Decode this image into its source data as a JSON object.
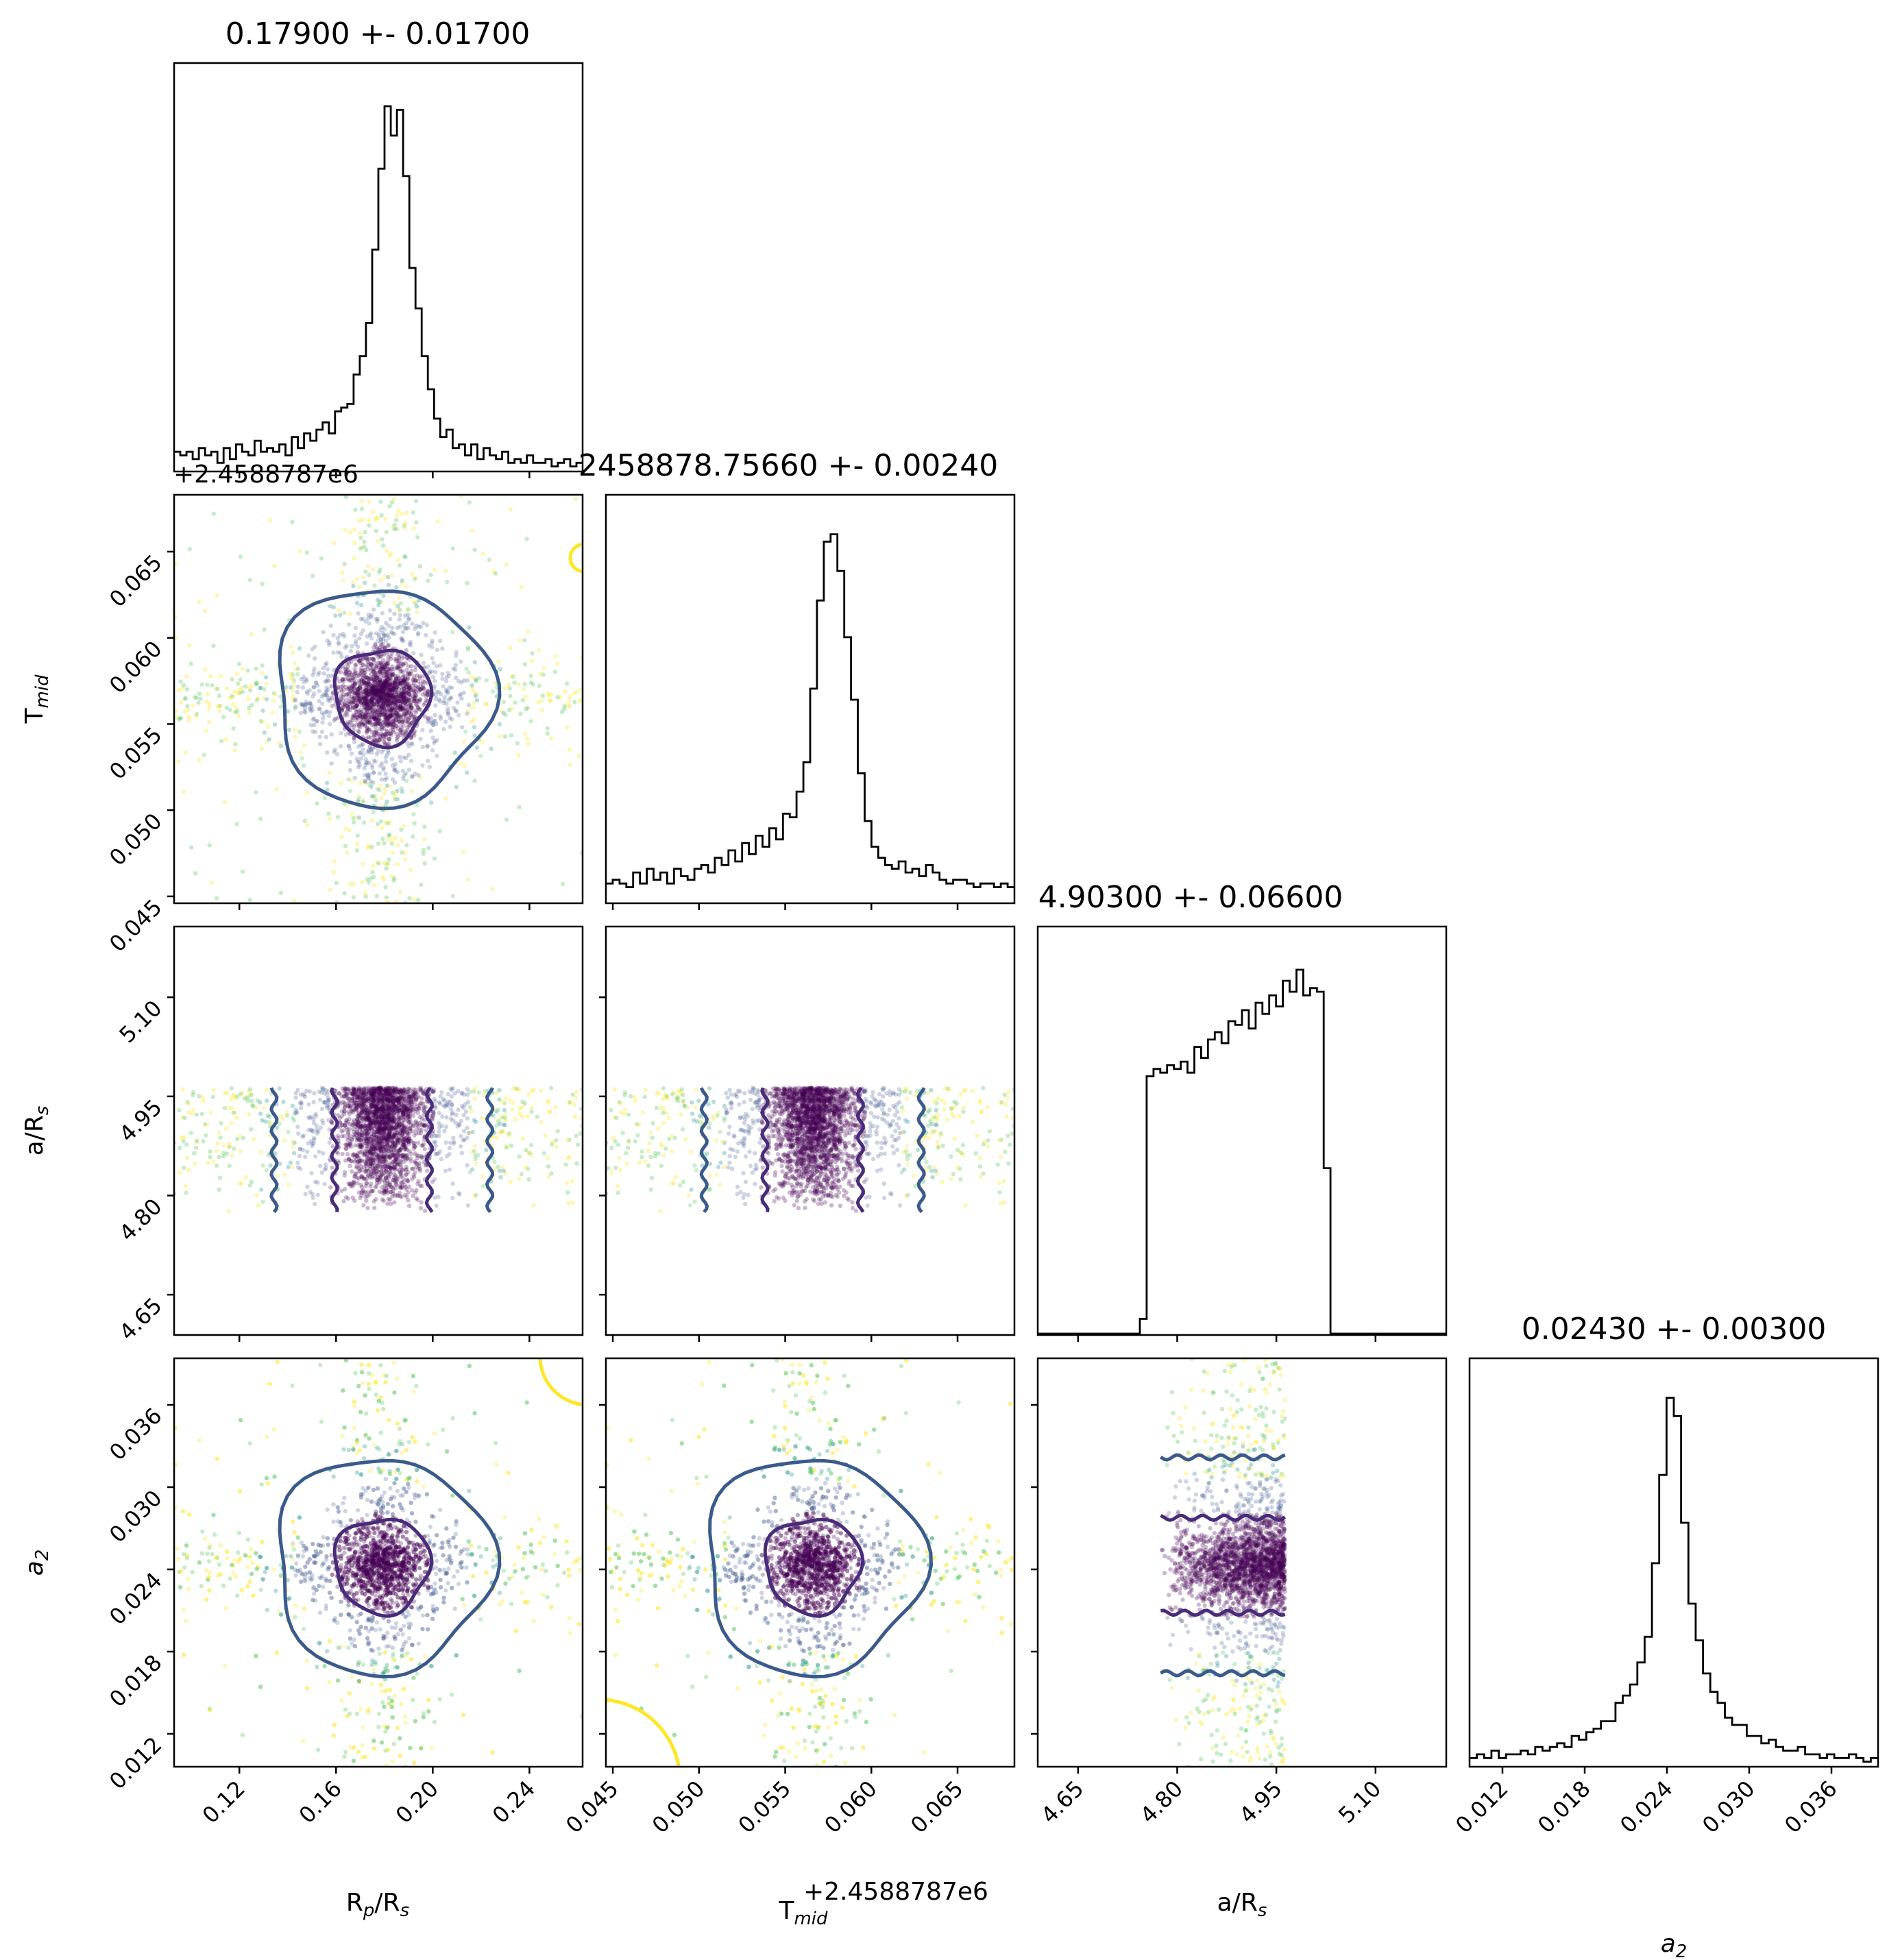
{
  "colors": {
    "axis": "#000000",
    "hist_line": "#000000",
    "contour_inner": "#472c7a",
    "contour_outer": "#3b5a8c",
    "contour_far": "#fde725",
    "points_core": "#440154",
    "points_mid": "#3b528b",
    "points_teal": "#21918c",
    "points_green": "#5ec962",
    "points_yellow": "#fde725"
  },
  "parameters": [
    {
      "key": "rp",
      "label_main": "R",
      "label_sub": "p",
      "label_tail": "/R",
      "label_tail_sub": "s"
    },
    {
      "key": "tmid",
      "label_main": "T",
      "label_sub": "mid",
      "label_tail": "",
      "label_tail_sub": ""
    },
    {
      "key": "ars",
      "label_main": "a/R",
      "label_sub": "s",
      "label_tail": "",
      "label_tail_sub": ""
    },
    {
      "key": "a2",
      "label_main": "a",
      "label_sub": "2",
      "label_tail": "",
      "label_tail_sub": ""
    }
  ],
  "titles": [
    "0.17900 +- 0.01700",
    "2458878.75660 +- 0.00240",
    "4.90300 +- 0.06600",
    "0.02430 +- 0.00300"
  ],
  "offset_label": "+2.4588787e6",
  "chart_data": {
    "type": "scatter",
    "subtype": "corner-plot",
    "axes": {
      "rp": {
        "range": [
          0.093,
          0.262
        ],
        "ticks": [
          0.12,
          0.16,
          0.2,
          0.24
        ],
        "tick_labels": [
          "0.12",
          "0.16",
          "0.20",
          "0.24"
        ]
      },
      "tmid": {
        "range": [
          0.0446,
          0.0683
        ],
        "ticks": [
          0.045,
          0.05,
          0.055,
          0.06,
          0.065
        ],
        "tick_labels": [
          "0.045",
          "0.050",
          "0.055",
          "0.060",
          "0.065"
        ],
        "offset": "+2.4588787e6"
      },
      "ars": {
        "range": [
          4.589,
          5.207
        ],
        "ticks": [
          4.65,
          4.8,
          4.95,
          5.1
        ],
        "tick_labels": [
          "4.65",
          "4.80",
          "4.95",
          "5.10"
        ]
      },
      "a2": {
        "range": [
          0.0096,
          0.0394
        ],
        "ticks": [
          0.012,
          0.018,
          0.024,
          0.03,
          0.036
        ],
        "tick_labels": [
          "0.012",
          "0.018",
          "0.024",
          "0.030",
          "0.036"
        ]
      }
    },
    "posterior_summary": [
      {
        "parameter": "rp",
        "median": 0.179,
        "sigma": 0.017
      },
      {
        "parameter": "tmid",
        "median": 0.0566,
        "sigma": 0.0024,
        "absolute_median": 2458878.7566
      },
      {
        "parameter": "ars",
        "median": 4.903,
        "sigma": 0.066
      },
      {
        "parameter": "a2",
        "median": 0.0243,
        "sigma": 0.003
      }
    ],
    "histograms": {
      "rp": {
        "bins": [
          0.093,
          0.262
        ],
        "values": [
          0.05,
          0.04,
          0.05,
          0.03,
          0.06,
          0.04,
          0.05,
          0.02,
          0.06,
          0.03,
          0.07,
          0.05,
          0.04,
          0.08,
          0.05,
          0.06,
          0.05,
          0.07,
          0.04,
          0.09,
          0.06,
          0.1,
          0.08,
          0.11,
          0.13,
          0.1,
          0.16,
          0.17,
          0.18,
          0.26,
          0.31,
          0.4,
          0.6,
          0.82,
          0.99,
          0.91,
          0.98,
          0.8,
          0.55,
          0.44,
          0.31,
          0.22,
          0.14,
          0.09,
          0.11,
          0.06,
          0.07,
          0.04,
          0.07,
          0.03,
          0.06,
          0.04,
          0.03,
          0.05,
          0.02,
          0.03,
          0.02,
          0.04,
          0.02,
          0.02,
          0.03,
          0.01,
          0.02,
          0.03,
          0.01,
          0.02
        ]
      },
      "tmid": {
        "bins": [
          0.0446,
          0.0683
        ],
        "values": [
          0.05,
          0.06,
          0.05,
          0.04,
          0.08,
          0.05,
          0.09,
          0.06,
          0.08,
          0.05,
          0.09,
          0.07,
          0.06,
          0.09,
          0.1,
          0.08,
          0.12,
          0.1,
          0.14,
          0.11,
          0.16,
          0.13,
          0.18,
          0.15,
          0.2,
          0.17,
          0.24,
          0.23,
          0.3,
          0.38,
          0.58,
          0.82,
          0.98,
          1.0,
          0.9,
          0.72,
          0.55,
          0.35,
          0.22,
          0.15,
          0.12,
          0.1,
          0.09,
          0.11,
          0.08,
          0.09,
          0.07,
          0.1,
          0.08,
          0.06,
          0.05,
          0.06,
          0.06,
          0.05,
          0.04,
          0.05,
          0.05,
          0.04,
          0.05,
          0.04
        ]
      },
      "ars": {
        "bins": [
          4.589,
          5.207
        ],
        "values": [
          0,
          0,
          0,
          0,
          0,
          0,
          0,
          0,
          0,
          0,
          0,
          0,
          0,
          0,
          0,
          0.04,
          0.7,
          0.72,
          0.71,
          0.73,
          0.72,
          0.74,
          0.71,
          0.78,
          0.75,
          0.8,
          0.82,
          0.79,
          0.85,
          0.84,
          0.88,
          0.83,
          0.9,
          0.87,
          0.92,
          0.89,
          0.96,
          0.93,
          0.99,
          0.92,
          0.94,
          0.93,
          0.45,
          0,
          0,
          0,
          0,
          0,
          0,
          0,
          0,
          0,
          0,
          0,
          0,
          0,
          0,
          0,
          0,
          0
        ]
      },
      "a2": {
        "bins": [
          0.0096,
          0.0394
        ],
        "values": [
          0.02,
          0.03,
          0.02,
          0.04,
          0.02,
          0.03,
          0.03,
          0.04,
          0.03,
          0.05,
          0.04,
          0.05,
          0.06,
          0.05,
          0.08,
          0.07,
          0.09,
          0.1,
          0.12,
          0.12,
          0.17,
          0.19,
          0.22,
          0.28,
          0.35,
          0.55,
          0.79,
          1.0,
          0.95,
          0.66,
          0.44,
          0.34,
          0.25,
          0.2,
          0.17,
          0.13,
          0.11,
          0.11,
          0.08,
          0.08,
          0.06,
          0.07,
          0.05,
          0.04,
          0.04,
          0.05,
          0.03,
          0.03,
          0.02,
          0.03,
          0.02,
          0.02,
          0.03,
          0.02,
          0.01,
          0.02
        ]
      }
    }
  }
}
